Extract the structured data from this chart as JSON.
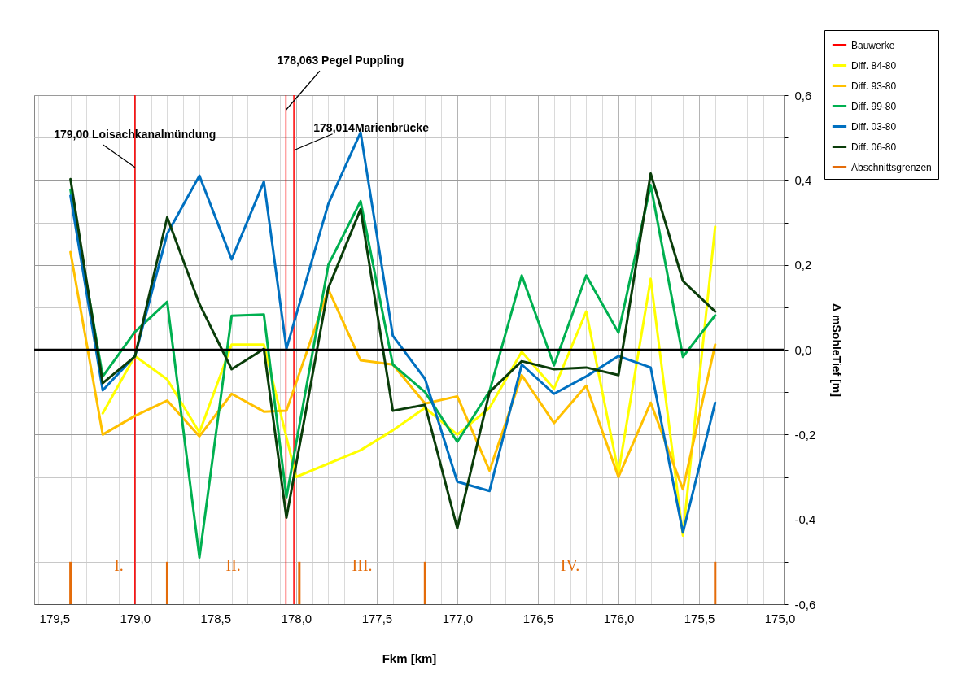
{
  "chart_data": {
    "type": "line",
    "xlabel": "Fkm [km]",
    "ylabel": "Δ mSohleTief [m]",
    "x": [
      179.4,
      179.2,
      179.0,
      178.8,
      178.6,
      178.4,
      178.2,
      178.06,
      177.8,
      177.6,
      177.4,
      177.2,
      177.0,
      176.8,
      176.6,
      176.4,
      176.2,
      176.0,
      175.8,
      175.6,
      175.4
    ],
    "series": [
      {
        "name": "Bauwerke",
        "type": "bar",
        "color": "#ff0000",
        "x": [
          179.0,
          178.063,
          178.014
        ],
        "base": [
          -0.6,
          -0.6,
          -0.6
        ],
        "values": [
          1.2,
          1.2,
          1.2
        ]
      },
      {
        "name": "Diff. 84-80",
        "color": "#ffff00",
        "x": [
          179.2,
          179.0,
          178.8,
          178.6,
          178.4,
          178.2,
          178.0,
          177.6,
          177.4,
          177.2,
          177.0,
          176.8,
          176.6,
          176.4,
          176.2,
          176.0,
          175.8,
          175.6,
          175.4
        ],
        "values": [
          -0.15,
          -0.015,
          -0.07,
          -0.195,
          0.012,
          0.012,
          -0.3,
          -0.237,
          -0.19,
          -0.137,
          -0.2,
          -0.137,
          -0.005,
          -0.092,
          0.09,
          -0.29,
          0.167,
          -0.438,
          0.29
        ]
      },
      {
        "name": "Diff. 93-80",
        "color": "#ffc000",
        "values": [
          0.23,
          -0.2,
          -0.156,
          -0.12,
          -0.204,
          -0.104,
          -0.146,
          -0.144,
          0.142,
          -0.025,
          -0.035,
          -0.127,
          -0.11,
          -0.285,
          -0.06,
          -0.173,
          -0.085,
          -0.3,
          -0.125,
          -0.329,
          0.012
        ]
      },
      {
        "name": "Diff. 99-80",
        "color": "#00b050",
        "values": [
          0.377,
          -0.063,
          0.042,
          0.113,
          -0.49,
          0.08,
          0.083,
          -0.348,
          0.2,
          0.35,
          -0.035,
          -0.1,
          -0.217,
          -0.098,
          0.175,
          -0.037,
          0.175,
          0.04,
          0.388,
          -0.017,
          0.081
        ]
      },
      {
        "name": "Diff. 03-80",
        "color": "#0070c0",
        "values": [
          0.363,
          -0.096,
          -0.015,
          0.273,
          0.41,
          0.213,
          0.396,
          0.002,
          0.344,
          0.512,
          0.033,
          -0.069,
          -0.311,
          -0.333,
          -0.035,
          -0.104,
          -0.063,
          -0.015,
          -0.042,
          -0.431,
          -0.125
        ]
      },
      {
        "name": "Diff. 06-80",
        "color": "#0a3d0a",
        "values": [
          0.402,
          -0.079,
          -0.016,
          0.312,
          0.108,
          -0.046,
          0.002,
          -0.396,
          0.146,
          0.331,
          -0.144,
          -0.13,
          -0.421,
          -0.1,
          -0.027,
          -0.046,
          -0.042,
          -0.06,
          0.415,
          0.162,
          0.09
        ]
      },
      {
        "name": "Abschnittsgrenzen",
        "type": "bar",
        "color": "#e46c0a",
        "x": [
          179.4,
          178.8,
          177.98,
          177.2,
          175.4
        ],
        "base": [
          -0.6,
          -0.6,
          -0.6,
          -0.6,
          -0.6
        ],
        "values": [
          0.1,
          0.1,
          0.1,
          0.1,
          0.1
        ]
      }
    ],
    "annotations": [
      {
        "text": "179,00 Loisachkanalmündung",
        "x": 179.0,
        "y": 0.43
      },
      {
        "text": "178,063 Pegel Puppling",
        "x": 178.063,
        "y": 0.565
      },
      {
        "text": "178,014Marienbrücke",
        "x": 178.014,
        "y": 0.47
      },
      "I.",
      "II.",
      "III.",
      "IV."
    ],
    "ref_lines": [
      {
        "axis": "y",
        "value": 0,
        "color": "#000000"
      }
    ],
    "xlim": [
      179.6,
      175.0
    ],
    "xticks": [
      {
        "value": 179.6,
        "label": null
      },
      {
        "value": 179.5,
        "label": "179,5"
      },
      {
        "value": 179.4,
        "label": null
      },
      {
        "value": 179.3,
        "label": null
      },
      {
        "value": 179.2,
        "label": null
      },
      {
        "value": 179.1,
        "label": null
      },
      {
        "value": 179.0,
        "label": "179,0"
      },
      {
        "value": 178.9,
        "label": null
      },
      {
        "value": 178.8,
        "label": null
      },
      {
        "value": 178.7,
        "label": null
      },
      {
        "value": 178.6,
        "label": null
      },
      {
        "value": 178.5,
        "label": "178,5"
      },
      {
        "value": 178.4,
        "label": null
      },
      {
        "value": 178.3,
        "label": null
      },
      {
        "value": 178.2,
        "label": null
      },
      {
        "value": 178.1,
        "label": null
      },
      {
        "value": 178.0,
        "label": "178,0"
      },
      {
        "value": 177.9,
        "label": null
      },
      {
        "value": 177.8,
        "label": null
      },
      {
        "value": 177.7,
        "label": null
      },
      {
        "value": 177.6,
        "label": null
      },
      {
        "value": 177.5,
        "label": "177,5"
      },
      {
        "value": 177.4,
        "label": null
      },
      {
        "value": 177.3,
        "label": null
      },
      {
        "value": 177.2,
        "label": null
      },
      {
        "value": 177.1,
        "label": null
      },
      {
        "value": 177.0,
        "label": "177,0"
      },
      {
        "value": 176.9,
        "label": null
      },
      {
        "value": 176.8,
        "label": null
      },
      {
        "value": 176.7,
        "label": null
      },
      {
        "value": 176.6,
        "label": null
      },
      {
        "value": 176.5,
        "label": "176,5"
      },
      {
        "value": 176.4,
        "label": null
      },
      {
        "value": 176.3,
        "label": null
      },
      {
        "value": 176.2,
        "label": null
      },
      {
        "value": 176.1,
        "label": null
      },
      {
        "value": 176.0,
        "label": "176,0"
      },
      {
        "value": 175.9,
        "label": null
      },
      {
        "value": 175.8,
        "label": null
      },
      {
        "value": 175.7,
        "label": null
      },
      {
        "value": 175.6,
        "label": null
      },
      {
        "value": 175.5,
        "label": "175,5"
      },
      {
        "value": 175.4,
        "label": null
      },
      {
        "value": 175.3,
        "label": null
      },
      {
        "value": 175.2,
        "label": null
      },
      {
        "value": 175.1,
        "label": null
      },
      {
        "value": 175.0,
        "label": "175,0"
      }
    ],
    "ylim": [
      -0.6,
      0.6
    ],
    "yticks": [
      {
        "value": 0.6,
        "label": "0,6"
      },
      {
        "value": 0.5,
        "label": null
      },
      {
        "value": 0.4,
        "label": "0,4"
      },
      {
        "value": 0.3,
        "label": null
      },
      {
        "value": 0.2,
        "label": "0,2"
      },
      {
        "value": 0.1,
        "label": null
      },
      {
        "value": 0,
        "label": "0,0"
      },
      {
        "value": -0.1,
        "label": null
      },
      {
        "value": -0.2,
        "label": "-0,2"
      },
      {
        "value": -0.3,
        "label": null
      },
      {
        "value": -0.4,
        "label": "-0,4"
      },
      {
        "value": -0.5,
        "label": null
      },
      {
        "value": -0.6,
        "label": "-0,6"
      }
    ],
    "grid": true,
    "legend": "top right"
  }
}
